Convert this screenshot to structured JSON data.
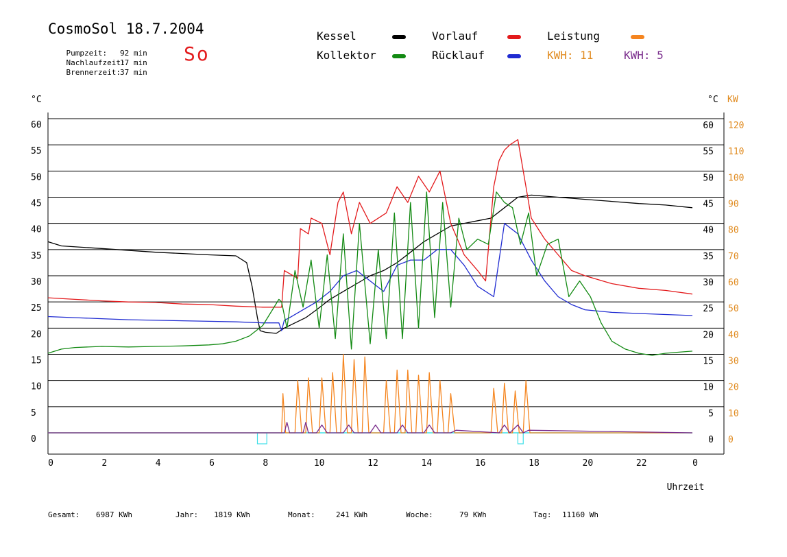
{
  "header": {
    "title": "CosmoSol 18.7.2004",
    "day": "So",
    "stats": [
      {
        "label": "Pumpzeit:",
        "value": "92 min"
      },
      {
        "label": "Nachlaufzeit:",
        "value": "17 min"
      },
      {
        "label": "Brennerzeit:",
        "value": "37 min"
      }
    ]
  },
  "legend": {
    "kessel": {
      "label": "Kessel",
      "color": "#000000"
    },
    "kollektor": {
      "label": "Kollektor",
      "color": "#138a13"
    },
    "vorlauf": {
      "label": "Vorlauf",
      "color": "#e31a1c"
    },
    "ruecklauf": {
      "label": "Rücklauf",
      "color": "#1f2bd1"
    },
    "leistung": {
      "label": "Leistung",
      "color": "#f5851f"
    },
    "kwh1": {
      "label": "KWH:",
      "value": "11",
      "color": "#e08a1e"
    },
    "kwh2": {
      "label": "KWH:",
      "value": "5",
      "color": "#7a2d8c"
    }
  },
  "footer": {
    "gesamt": {
      "label": "Gesamt:",
      "value": "6987 KWh"
    },
    "jahr": {
      "label": "Jahr:",
      "value": "1819 KWh"
    },
    "monat": {
      "label": "Monat:",
      "value": "241 KWh"
    },
    "woche": {
      "label": "Woche:",
      "value": "79 KWh"
    },
    "tag": {
      "label": "Tag:",
      "value": "11160 Wh"
    }
  },
  "chart_data": {
    "type": "line",
    "xlabel": "Uhrzeit",
    "ylabel_left": "°C",
    "ylabel_right": "°C",
    "ylabel_right2": "KW",
    "xlim": [
      0,
      24
    ],
    "ylim": [
      0,
      60
    ],
    "ylim_kw": [
      0,
      120
    ],
    "x_ticks": [
      "0",
      "2",
      "4",
      "6",
      "8",
      "10",
      "12",
      "14",
      "16",
      "18",
      "20",
      "22",
      "0"
    ],
    "y_ticks": [
      0,
      5,
      10,
      15,
      20,
      25,
      30,
      35,
      40,
      45,
      50,
      55,
      60
    ],
    "y_ticks_kw": [
      0,
      10,
      20,
      30,
      40,
      50,
      60,
      70,
      80,
      90,
      100,
      110,
      120
    ],
    "grid": "horizontal",
    "series": [
      {
        "key": "kessel",
        "name": "Kessel",
        "color": "#000000",
        "x": [
          0,
          0.5,
          2,
          4,
          6,
          7,
          7.4,
          7.6,
          7.8,
          7.9,
          8.1,
          8.5,
          8.8,
          9.2,
          9.6,
          10,
          10.5,
          11,
          11.5,
          12,
          12.5,
          13,
          13.5,
          14,
          14.5,
          15,
          16,
          16.5,
          17,
          17.5,
          18,
          19,
          20,
          21,
          22,
          23,
          24
        ],
        "y": [
          36.5,
          35.7,
          35.2,
          34.5,
          34,
          33.8,
          32.5,
          28,
          22,
          19.5,
          19.2,
          19,
          20,
          21,
          22,
          23.5,
          25.5,
          27,
          28.5,
          30,
          31,
          32.5,
          34.5,
          36.5,
          38,
          39.5,
          40.5,
          41,
          43,
          45,
          45.4,
          45,
          44.6,
          44.2,
          43.8,
          43.5,
          43
        ]
      },
      {
        "key": "vorlauf",
        "name": "Vorlauf",
        "color": "#e31a1c",
        "x": [
          0,
          1,
          2,
          3,
          4,
          5,
          6,
          7,
          8,
          8.7,
          8.8,
          9.3,
          9.4,
          9.7,
          9.8,
          10.2,
          10.5,
          10.8,
          11,
          11.3,
          11.6,
          12,
          12.6,
          13,
          13.4,
          13.8,
          14.2,
          14.6,
          15,
          15.5,
          16,
          16.3,
          16.6,
          16.8,
          17,
          17.2,
          17.5,
          17.8,
          18,
          18.5,
          19,
          19.5,
          20,
          21,
          22,
          23,
          24
        ],
        "y": [
          25.8,
          25.5,
          25.2,
          25,
          24.9,
          24.6,
          24.5,
          24.2,
          24,
          24,
          31,
          29.5,
          39,
          38,
          41,
          40,
          34,
          44,
          46,
          38,
          44,
          40,
          42,
          47,
          44,
          49,
          46,
          50,
          40,
          34,
          31,
          29,
          47,
          52,
          54,
          55,
          56,
          47,
          41,
          37,
          34,
          31,
          30,
          28.5,
          27.6,
          27.2,
          26.5
        ]
      },
      {
        "key": "ruecklauf",
        "name": "Rücklauf",
        "color": "#1f2bd1",
        "x": [
          0,
          1,
          2,
          3,
          4,
          5,
          6,
          7,
          8,
          8.6,
          8.7,
          8.8,
          9,
          9.5,
          10,
          10.5,
          11,
          11.5,
          12,
          12.5,
          13,
          13.5,
          14,
          14.5,
          15,
          15.5,
          16,
          16.6,
          17,
          17.5,
          18,
          18.5,
          19,
          19.5,
          20,
          21,
          22,
          23,
          24
        ],
        "y": [
          22.2,
          22,
          21.8,
          21.6,
          21.5,
          21.4,
          21.3,
          21.2,
          21,
          21,
          19.5,
          21.5,
          22,
          23.5,
          25,
          27,
          30,
          31,
          29,
          27,
          32,
          33,
          33,
          35,
          35,
          32,
          28,
          26,
          40,
          38,
          33,
          29,
          26,
          24.5,
          23.5,
          23,
          22.8,
          22.6,
          22.4
        ]
      },
      {
        "key": "kollektor",
        "name": "Kollektor",
        "color": "#138a13",
        "x": [
          0,
          0.5,
          1,
          2,
          3,
          4,
          5,
          6,
          6.5,
          7,
          7.5,
          8,
          8.3,
          8.6,
          8.7,
          8.9,
          9.2,
          9.5,
          9.8,
          10.1,
          10.4,
          10.7,
          11,
          11.3,
          11.6,
          12,
          12.3,
          12.6,
          12.9,
          13.2,
          13.5,
          13.8,
          14.1,
          14.4,
          14.7,
          15,
          15.3,
          15.6,
          16,
          16.4,
          16.7,
          17,
          17.3,
          17.6,
          17.9,
          18.2,
          18.6,
          19,
          19.4,
          19.8,
          20.2,
          20.6,
          21,
          21.5,
          22,
          22.5,
          23,
          23.5,
          24
        ],
        "y": [
          15.2,
          16,
          16.3,
          16.5,
          16.4,
          16.5,
          16.6,
          16.8,
          17,
          17.5,
          18.5,
          20.5,
          23,
          25.5,
          25,
          20,
          31,
          24,
          33,
          20,
          34,
          18,
          38,
          16,
          40,
          17,
          35,
          18,
          42,
          18,
          44,
          20,
          46,
          22,
          44,
          24,
          41,
          35,
          37,
          36,
          46,
          44,
          43,
          36,
          42,
          30,
          36,
          37,
          26,
          29,
          26,
          21,
          17.5,
          16,
          15.2,
          14.8,
          15.2,
          15.4,
          15.6
        ]
      },
      {
        "key": "leistung",
        "name": "Leistung",
        "color": "#f5851f",
        "x": [
          0,
          8.7,
          8.75,
          8.85,
          9.2,
          9.3,
          9.45,
          9.6,
          9.7,
          9.85,
          10.1,
          10.2,
          10.35,
          10.5,
          10.6,
          10.75,
          10.9,
          11,
          11.15,
          11.3,
          11.4,
          11.55,
          11.7,
          11.8,
          11.95,
          12.5,
          12.6,
          12.75,
          12.9,
          13,
          13.15,
          13.3,
          13.4,
          13.55,
          13.7,
          13.8,
          13.95,
          14.1,
          14.2,
          14.35,
          14.5,
          14.6,
          14.75,
          14.9,
          15,
          15.15,
          16.5,
          16.6,
          16.75,
          16.9,
          17,
          17.15,
          17.3,
          17.4,
          17.55,
          17.7,
          17.8,
          17.95,
          24
        ],
        "y": [
          0,
          0,
          7.5,
          0,
          0,
          10,
          0,
          0,
          10.5,
          0,
          0,
          10.5,
          0,
          0,
          11.5,
          0,
          0,
          15,
          0,
          0,
          14,
          0,
          0,
          14.5,
          0,
          0,
          10,
          0,
          0,
          12,
          0,
          0,
          12,
          0,
          0,
          11,
          0,
          0,
          11.5,
          0,
          0,
          10,
          0,
          0,
          7.5,
          0,
          0,
          8.5,
          0,
          0,
          9.5,
          0,
          0,
          8,
          0,
          0,
          10,
          0,
          0
        ]
      },
      {
        "key": "kwh2",
        "name": "",
        "color": "#7a2d8c",
        "x": [
          0,
          8.8,
          8.9,
          9,
          9.5,
          9.6,
          9.7,
          10,
          10.2,
          10.4,
          11,
          11.2,
          11.4,
          12,
          12.2,
          12.4,
          13,
          13.2,
          13.4,
          14,
          14.2,
          14.4,
          15,
          15.2,
          16.8,
          17,
          17.2,
          17.5,
          17.7,
          17.9,
          24
        ],
        "y": [
          0,
          0,
          2,
          0,
          0,
          2,
          0,
          0,
          1.5,
          0,
          0,
          1.5,
          0,
          0,
          1.5,
          0,
          0,
          1.5,
          0,
          0,
          1.5,
          0,
          0,
          0.5,
          0,
          1.5,
          0,
          1.5,
          0,
          0.5,
          0
        ]
      }
    ],
    "pump_markers": [
      {
        "start": 7.8,
        "end": 8.15
      },
      {
        "start": 17.5,
        "end": 17.7
      }
    ]
  }
}
